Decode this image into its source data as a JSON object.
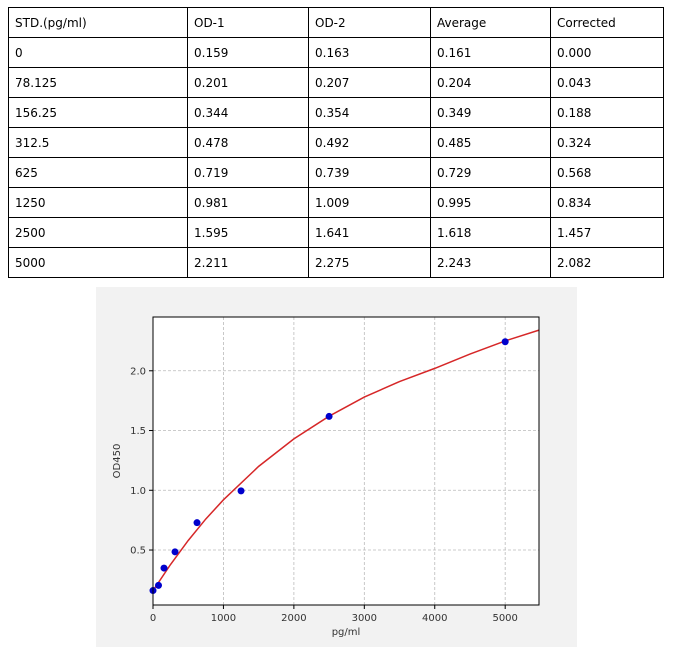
{
  "table": {
    "header": [
      "STD.(pg/ml)",
      "OD-1",
      "OD-2",
      "Average",
      "Corrected"
    ],
    "rows": [
      [
        "0",
        "0.159",
        "0.163",
        "0.161",
        "0.000"
      ],
      [
        "78.125",
        "0.201",
        "0.207",
        "0.204",
        "0.043"
      ],
      [
        "156.25",
        "0.344",
        "0.354",
        "0.349",
        "0.188"
      ],
      [
        "312.5",
        "0.478",
        "0.492",
        "0.485",
        "0.324"
      ],
      [
        "625",
        "0.719",
        "0.739",
        "0.729",
        "0.568"
      ],
      [
        "1250",
        "0.981",
        "1.009",
        "0.995",
        "0.834"
      ],
      [
        "2500",
        "1.595",
        "1.641",
        "1.618",
        "1.457"
      ],
      [
        "5000",
        "2.211",
        "2.275",
        "2.243",
        "2.082"
      ]
    ]
  },
  "chart_data": {
    "type": "scatter",
    "x_label": "pg/ml",
    "y_label": "OD450",
    "xlim": [
      0,
      5480
    ],
    "ylim": [
      0.04,
      2.45
    ],
    "xticks": [
      0,
      1000,
      2000,
      3000,
      4000,
      5000
    ],
    "yticks": [
      0.5,
      {
        "value": 1,
        "label": "1.0"
      },
      1.5,
      {
        "value": 2,
        "label": "2.0"
      }
    ],
    "grid": true,
    "series": [
      {
        "type": "scatter",
        "color": "#0000cc",
        "x": [
          0,
          78.125,
          156.25,
          312.5,
          625,
          1250,
          2500,
          5000
        ],
        "values": [
          0.161,
          0.204,
          0.349,
          0.485,
          0.729,
          0.995,
          1.618,
          2.243
        ]
      },
      {
        "type": "line",
        "color": "#d62728",
        "x": [
          0,
          250,
          500,
          750,
          1000,
          1500,
          2000,
          2500,
          3000,
          3500,
          4000,
          4500,
          5000,
          5480
        ],
        "values": [
          0.16,
          0.38,
          0.58,
          0.76,
          0.92,
          1.2,
          1.43,
          1.62,
          1.78,
          1.91,
          2.02,
          2.14,
          2.25,
          2.34
        ]
      }
    ]
  }
}
